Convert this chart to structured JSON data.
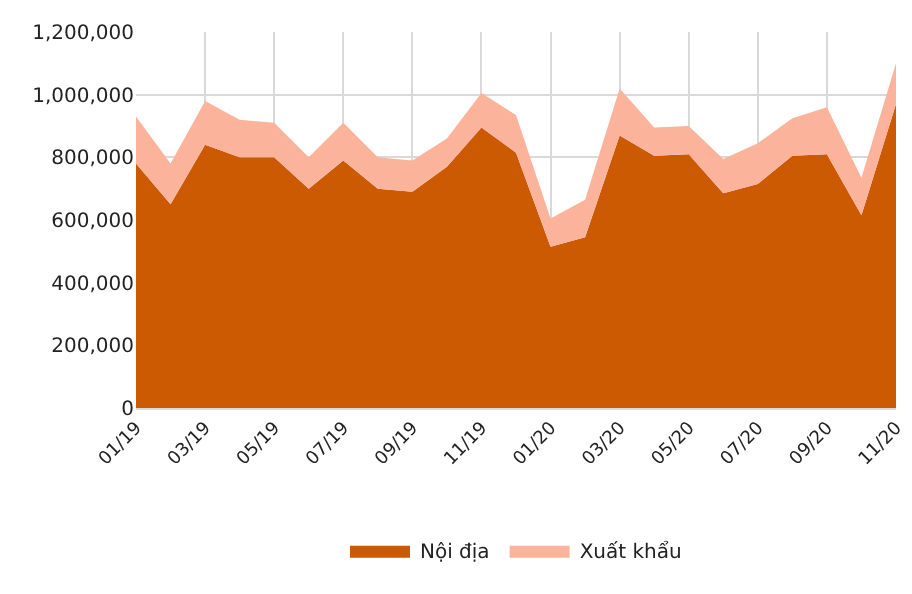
{
  "chart_data": {
    "type": "area",
    "stacked": true,
    "categories": [
      "01/19",
      null,
      "03/19",
      null,
      "05/19",
      null,
      "07/19",
      null,
      "09/19",
      null,
      "11/19",
      null,
      "01/20",
      null,
      "03/20",
      null,
      "05/20",
      null,
      "07/20",
      null,
      "09/20",
      null,
      "11/20"
    ],
    "series": [
      {
        "name": "Nội địa",
        "color": "#cc5a03",
        "values": [
          780000,
          650000,
          840000,
          800000,
          800000,
          700000,
          790000,
          700000,
          690000,
          770000,
          895000,
          815000,
          515000,
          545000,
          870000,
          805000,
          810000,
          685000,
          715000,
          805000,
          810000,
          615000,
          970000
        ]
      },
      {
        "name": "Xuất khẩu",
        "color": "#fbb39c",
        "values": [
          150000,
          130000,
          140000,
          120000,
          110000,
          100000,
          120000,
          100000,
          100000,
          90000,
          110000,
          120000,
          90000,
          120000,
          150000,
          90000,
          90000,
          110000,
          130000,
          120000,
          150000,
          120000,
          130000
        ]
      }
    ],
    "ylim": [
      0,
      1200000
    ],
    "yticks": [
      {
        "value": 0,
        "label": "0"
      },
      {
        "value": 200000,
        "label": "200,000"
      },
      {
        "value": 400000,
        "label": "400,000"
      },
      {
        "value": 600000,
        "label": "600,000"
      },
      {
        "value": 800000,
        "label": "800,000"
      },
      {
        "value": 1000000,
        "label": "1,000,000"
      },
      {
        "value": 1200000,
        "label": "1,200,000"
      }
    ],
    "grid": true,
    "legend": "bottom"
  }
}
